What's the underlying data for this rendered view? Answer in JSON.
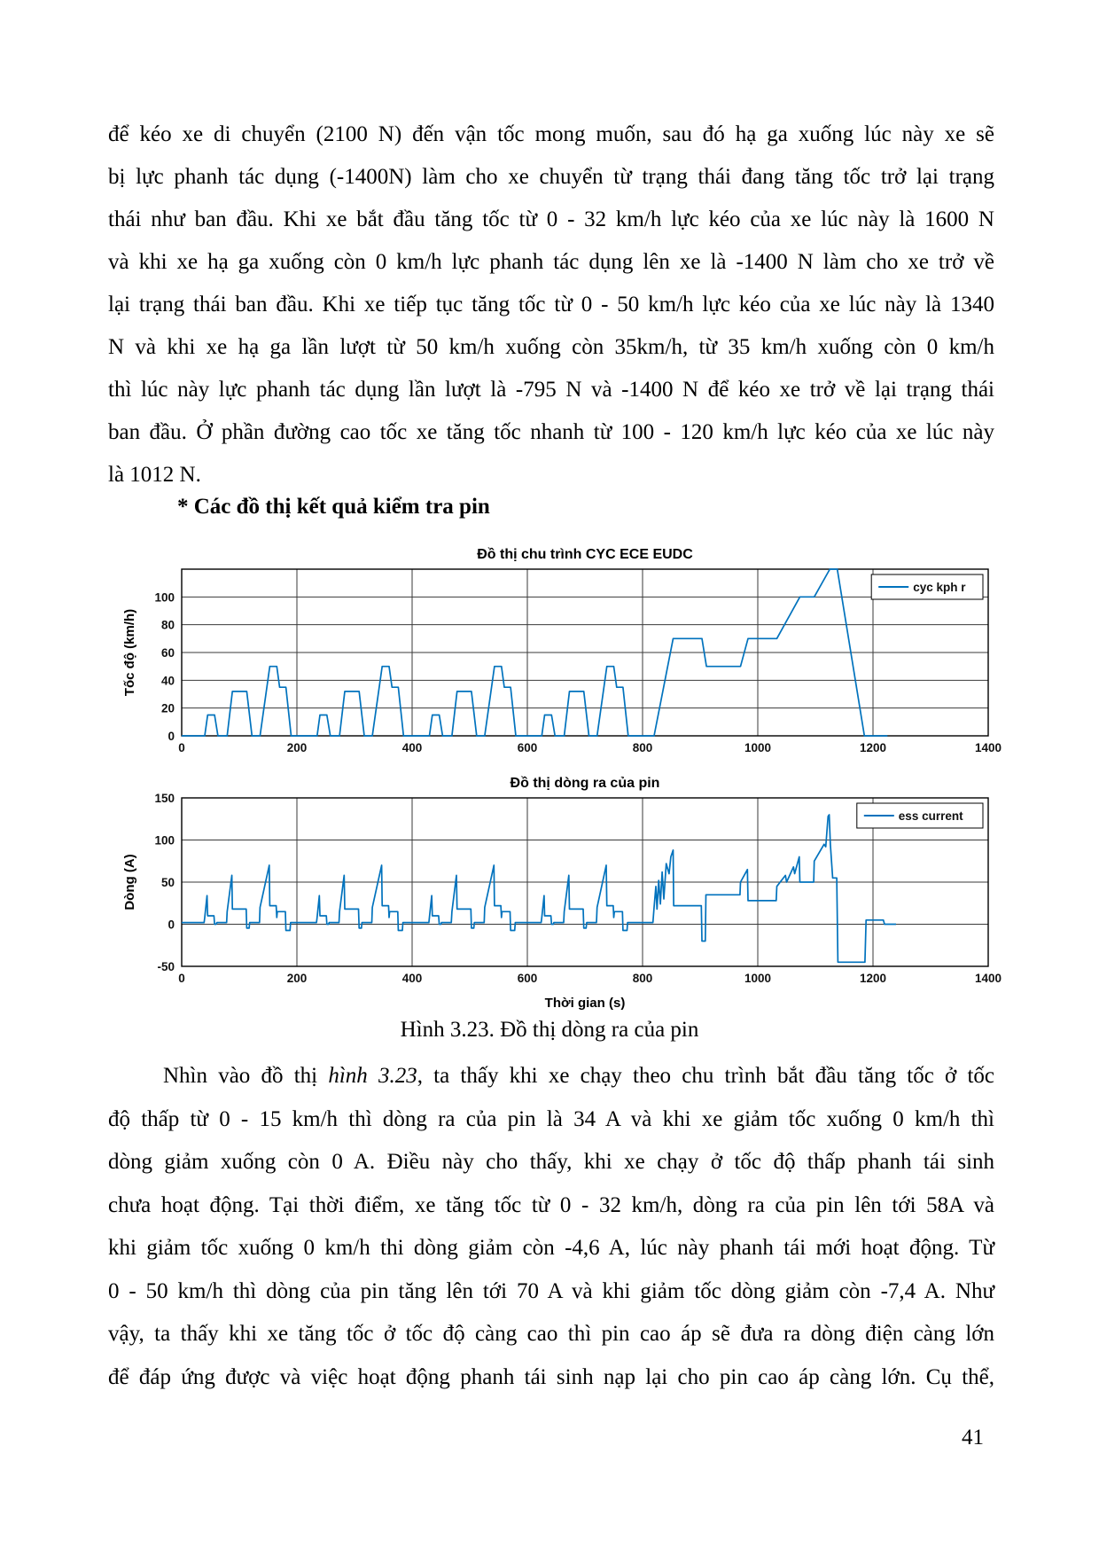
{
  "page": {
    "number": "41"
  },
  "heading": "* Các đồ thị kết quả kiểm tra pin",
  "caption": "Hình 3.23. Đồ thị dòng ra của pin",
  "para1": {
    "lines": [
      "để kéo xe di chuyển (2100 N) đến vận tốc mong muốn, sau đó hạ ga xuống lúc này xe sẽ",
      "bị lực phanh tác dụng (-1400N) làm cho xe chuyển từ trạng thái đang tăng tốc trở lại trạng",
      "thái như ban đầu. Khi xe bắt đầu tăng tốc từ 0 - 32 km/h lực kéo của xe lúc này là 1600 N",
      "và khi xe hạ ga xuống còn 0 km/h lực phanh tác dụng lên xe là -1400 N làm cho xe trở về",
      "lại trạng thái ban đầu. Khi xe tiếp tục tăng tốc từ 0 - 50 km/h lực kéo của xe lúc này là 1340",
      "N và khi xe hạ ga lần lượt từ 50 km/h xuống còn 35km/h, từ 35 km/h xuống còn 0 km/h",
      "thì lúc này lực phanh tác dụng lần lượt là -795 N và -1400 N để kéo xe trở về lại trạng thái",
      "ban đầu. Ở phần đường cao tốc xe tăng tốc nhanh từ 100 - 120 km/h lực kéo của xe lúc này",
      "là 1012 N."
    ]
  },
  "para2": {
    "line1_pre": "Nhìn vào đồ thị ",
    "line1_italic": "hình 3.23",
    "line1_post": ", ta thấy khi xe chạy theo chu trình bắt đầu tăng tốc ở tốc",
    "lines": [
      "độ thấp từ 0 - 15 km/h thì dòng ra của pin là 34 A và khi xe giảm tốc xuống 0 km/h thì",
      "dòng giảm xuống còn 0 A. Điều này cho thấy, khi xe chạy ở tốc độ thấp phanh tái sinh",
      "chưa hoạt động. Tại thời điểm, xe tăng tốc từ 0 - 32 km/h, dòng ra của pin lên tới 58A và",
      "khi giảm tốc xuống 0 km/h thi dòng giảm còn -4,6 A, lúc này phanh tái mới hoạt động. Từ",
      "0 - 50 km/h thì dòng của pin tăng lên tới 70 A và khi giảm tốc dòng giảm còn -7,4 A. Như",
      "vậy, ta thấy khi xe tăng tốc ở tốc độ càng cao thì pin cao áp sẽ đưa ra dòng điện càng lớn",
      "để đáp ứng được và việc hoạt động phanh tái sinh nạp lại cho pin cao áp càng lớn. Cụ thể,"
    ]
  },
  "chart_data": [
    {
      "type": "line",
      "title": "Đồ thị chu trình CYC ECE EUDC",
      "xlabel": "",
      "ylabel": "Tốc độ (km/h)",
      "legend": "cyc kph r",
      "legend_position": "top-right",
      "line_color": "#0072BD",
      "grid": true,
      "xlim": [
        0,
        1400
      ],
      "ylim": [
        0,
        120
      ],
      "xticks": [
        0,
        200,
        400,
        600,
        800,
        1000,
        1200,
        1400
      ],
      "yticks": [
        0,
        20,
        40,
        60,
        80,
        100
      ],
      "series": [
        {
          "name": "cyc kph r",
          "points": [
            [
              0,
              0
            ],
            [
              40,
              0
            ],
            [
              45,
              15
            ],
            [
              57,
              15
            ],
            [
              63,
              0
            ],
            [
              79,
              0
            ],
            [
              88,
              32
            ],
            [
              113,
              32
            ],
            [
              122,
              0
            ],
            [
              136,
              0
            ],
            [
              153,
              50
            ],
            [
              165,
              50
            ],
            [
              170,
              35
            ],
            [
              181,
              35
            ],
            [
              190,
              0
            ],
            [
              235,
              0
            ],
            [
              240,
              15
            ],
            [
              252,
              15
            ],
            [
              258,
              0
            ],
            [
              274,
              0
            ],
            [
              283,
              32
            ],
            [
              308,
              32
            ],
            [
              317,
              0
            ],
            [
              331,
              0
            ],
            [
              348,
              50
            ],
            [
              360,
              50
            ],
            [
              365,
              35
            ],
            [
              376,
              35
            ],
            [
              385,
              0
            ],
            [
              430,
              0
            ],
            [
              435,
              15
            ],
            [
              447,
              15
            ],
            [
              453,
              0
            ],
            [
              469,
              0
            ],
            [
              478,
              32
            ],
            [
              503,
              32
            ],
            [
              512,
              0
            ],
            [
              526,
              0
            ],
            [
              543,
              50
            ],
            [
              555,
              50
            ],
            [
              560,
              35
            ],
            [
              571,
              35
            ],
            [
              580,
              0
            ],
            [
              625,
              0
            ],
            [
              630,
              15
            ],
            [
              642,
              15
            ],
            [
              648,
              0
            ],
            [
              664,
              0
            ],
            [
              673,
              32
            ],
            [
              698,
              32
            ],
            [
              707,
              0
            ],
            [
              721,
              0
            ],
            [
              738,
              50
            ],
            [
              750,
              50
            ],
            [
              755,
              35
            ],
            [
              766,
              35
            ],
            [
              775,
              0
            ],
            [
              820,
              0
            ],
            [
              853,
              70
            ],
            [
              903,
              70
            ],
            [
              911,
              50
            ],
            [
              970,
              50
            ],
            [
              983,
              70
            ],
            [
              1033,
              70
            ],
            [
              1073,
              100
            ],
            [
              1098,
              100
            ],
            [
              1125,
              120
            ],
            [
              1138,
              120
            ],
            [
              1185,
              0
            ],
            [
              1225,
              0
            ]
          ]
        }
      ]
    },
    {
      "type": "line",
      "title": "Đồ thị dòng ra của pin",
      "xlabel": "Thời gian (s)",
      "ylabel": "Dòng (A)",
      "legend": "ess current",
      "legend_position": "top-right",
      "line_color": "#0072BD",
      "grid": true,
      "xlim": [
        0,
        1400
      ],
      "ylim": [
        -50,
        150
      ],
      "xticks": [
        0,
        200,
        400,
        600,
        800,
        1000,
        1200,
        1400
      ],
      "yticks": [
        -50,
        0,
        50,
        100,
        150
      ],
      "series": [
        {
          "name": "ess current",
          "points": [
            [
              0,
              2
            ],
            [
              39,
              2
            ],
            [
              40,
              8
            ],
            [
              44,
              34
            ],
            [
              45,
              10
            ],
            [
              56,
              10
            ],
            [
              57,
              0
            ],
            [
              60,
              0
            ],
            [
              61,
              2
            ],
            [
              78,
              2
            ],
            [
              79,
              15
            ],
            [
              87,
              58
            ],
            [
              88,
              18
            ],
            [
              112,
              18
            ],
            [
              113,
              -4.6
            ],
            [
              117,
              -4.6
            ],
            [
              118,
              2
            ],
            [
              135,
              2
            ],
            [
              136,
              20
            ],
            [
              152,
              70
            ],
            [
              153,
              22
            ],
            [
              164,
              22
            ],
            [
              165,
              8
            ],
            [
              166,
              15
            ],
            [
              180,
              15
            ],
            [
              181,
              -7.4
            ],
            [
              188,
              -7.4
            ],
            [
              189,
              2
            ],
            [
              234,
              2
            ],
            [
              235,
              8
            ],
            [
              239,
              34
            ],
            [
              240,
              10
            ],
            [
              251,
              10
            ],
            [
              252,
              0
            ],
            [
              255,
              0
            ],
            [
              256,
              2
            ],
            [
              273,
              2
            ],
            [
              274,
              15
            ],
            [
              282,
              58
            ],
            [
              283,
              18
            ],
            [
              307,
              18
            ],
            [
              308,
              -4.6
            ],
            [
              312,
              -4.6
            ],
            [
              313,
              2
            ],
            [
              330,
              2
            ],
            [
              331,
              20
            ],
            [
              347,
              70
            ],
            [
              348,
              22
            ],
            [
              359,
              22
            ],
            [
              360,
              8
            ],
            [
              361,
              15
            ],
            [
              375,
              15
            ],
            [
              376,
              -7.4
            ],
            [
              383,
              -7.4
            ],
            [
              384,
              2
            ],
            [
              429,
              2
            ],
            [
              430,
              8
            ],
            [
              434,
              34
            ],
            [
              435,
              10
            ],
            [
              446,
              10
            ],
            [
              447,
              0
            ],
            [
              450,
              0
            ],
            [
              451,
              2
            ],
            [
              468,
              2
            ],
            [
              469,
              15
            ],
            [
              477,
              58
            ],
            [
              478,
              18
            ],
            [
              502,
              18
            ],
            [
              503,
              -4.6
            ],
            [
              507,
              -4.6
            ],
            [
              508,
              2
            ],
            [
              525,
              2
            ],
            [
              526,
              20
            ],
            [
              542,
              70
            ],
            [
              543,
              22
            ],
            [
              554,
              22
            ],
            [
              555,
              8
            ],
            [
              556,
              15
            ],
            [
              570,
              15
            ],
            [
              571,
              -7.4
            ],
            [
              578,
              -7.4
            ],
            [
              579,
              2
            ],
            [
              624,
              2
            ],
            [
              625,
              8
            ],
            [
              629,
              34
            ],
            [
              630,
              10
            ],
            [
              641,
              10
            ],
            [
              642,
              0
            ],
            [
              645,
              0
            ],
            [
              646,
              2
            ],
            [
              663,
              2
            ],
            [
              664,
              15
            ],
            [
              672,
              58
            ],
            [
              673,
              18
            ],
            [
              697,
              18
            ],
            [
              698,
              -4.6
            ],
            [
              702,
              -4.6
            ],
            [
              703,
              2
            ],
            [
              720,
              2
            ],
            [
              721,
              20
            ],
            [
              737,
              70
            ],
            [
              738,
              22
            ],
            [
              749,
              22
            ],
            [
              750,
              8
            ],
            [
              751,
              15
            ],
            [
              765,
              15
            ],
            [
              766,
              -7.4
            ],
            [
              773,
              -7.4
            ],
            [
              774,
              2
            ],
            [
              818,
              2
            ],
            [
              820,
              20
            ],
            [
              823,
              45
            ],
            [
              825,
              18
            ],
            [
              828,
              52
            ],
            [
              831,
              24
            ],
            [
              834,
              62
            ],
            [
              837,
              30
            ],
            [
              841,
              72
            ],
            [
              846,
              60
            ],
            [
              849,
              80
            ],
            [
              853,
              88
            ],
            [
              854,
              22
            ],
            [
              902,
              22
            ],
            [
              903,
              -20
            ],
            [
              909,
              -20
            ],
            [
              910,
              35
            ],
            [
              969,
              35
            ],
            [
              970,
              50
            ],
            [
              982,
              65
            ],
            [
              983,
              28
            ],
            [
              1032,
              28
            ],
            [
              1033,
              45
            ],
            [
              1048,
              58
            ],
            [
              1050,
              50
            ],
            [
              1062,
              68
            ],
            [
              1064,
              60
            ],
            [
              1072,
              80
            ],
            [
              1073,
              50
            ],
            [
              1097,
              50
            ],
            [
              1098,
              75
            ],
            [
              1115,
              95
            ],
            [
              1118,
              92
            ],
            [
              1122,
              128
            ],
            [
              1124,
              130
            ],
            [
              1126,
              95
            ],
            [
              1130,
              55
            ],
            [
              1137,
              55
            ],
            [
              1139,
              -45
            ],
            [
              1186,
              -45
            ],
            [
              1188,
              5
            ],
            [
              1218,
              5
            ],
            [
              1220,
              0
            ],
            [
              1240,
              0
            ]
          ]
        }
      ]
    }
  ]
}
